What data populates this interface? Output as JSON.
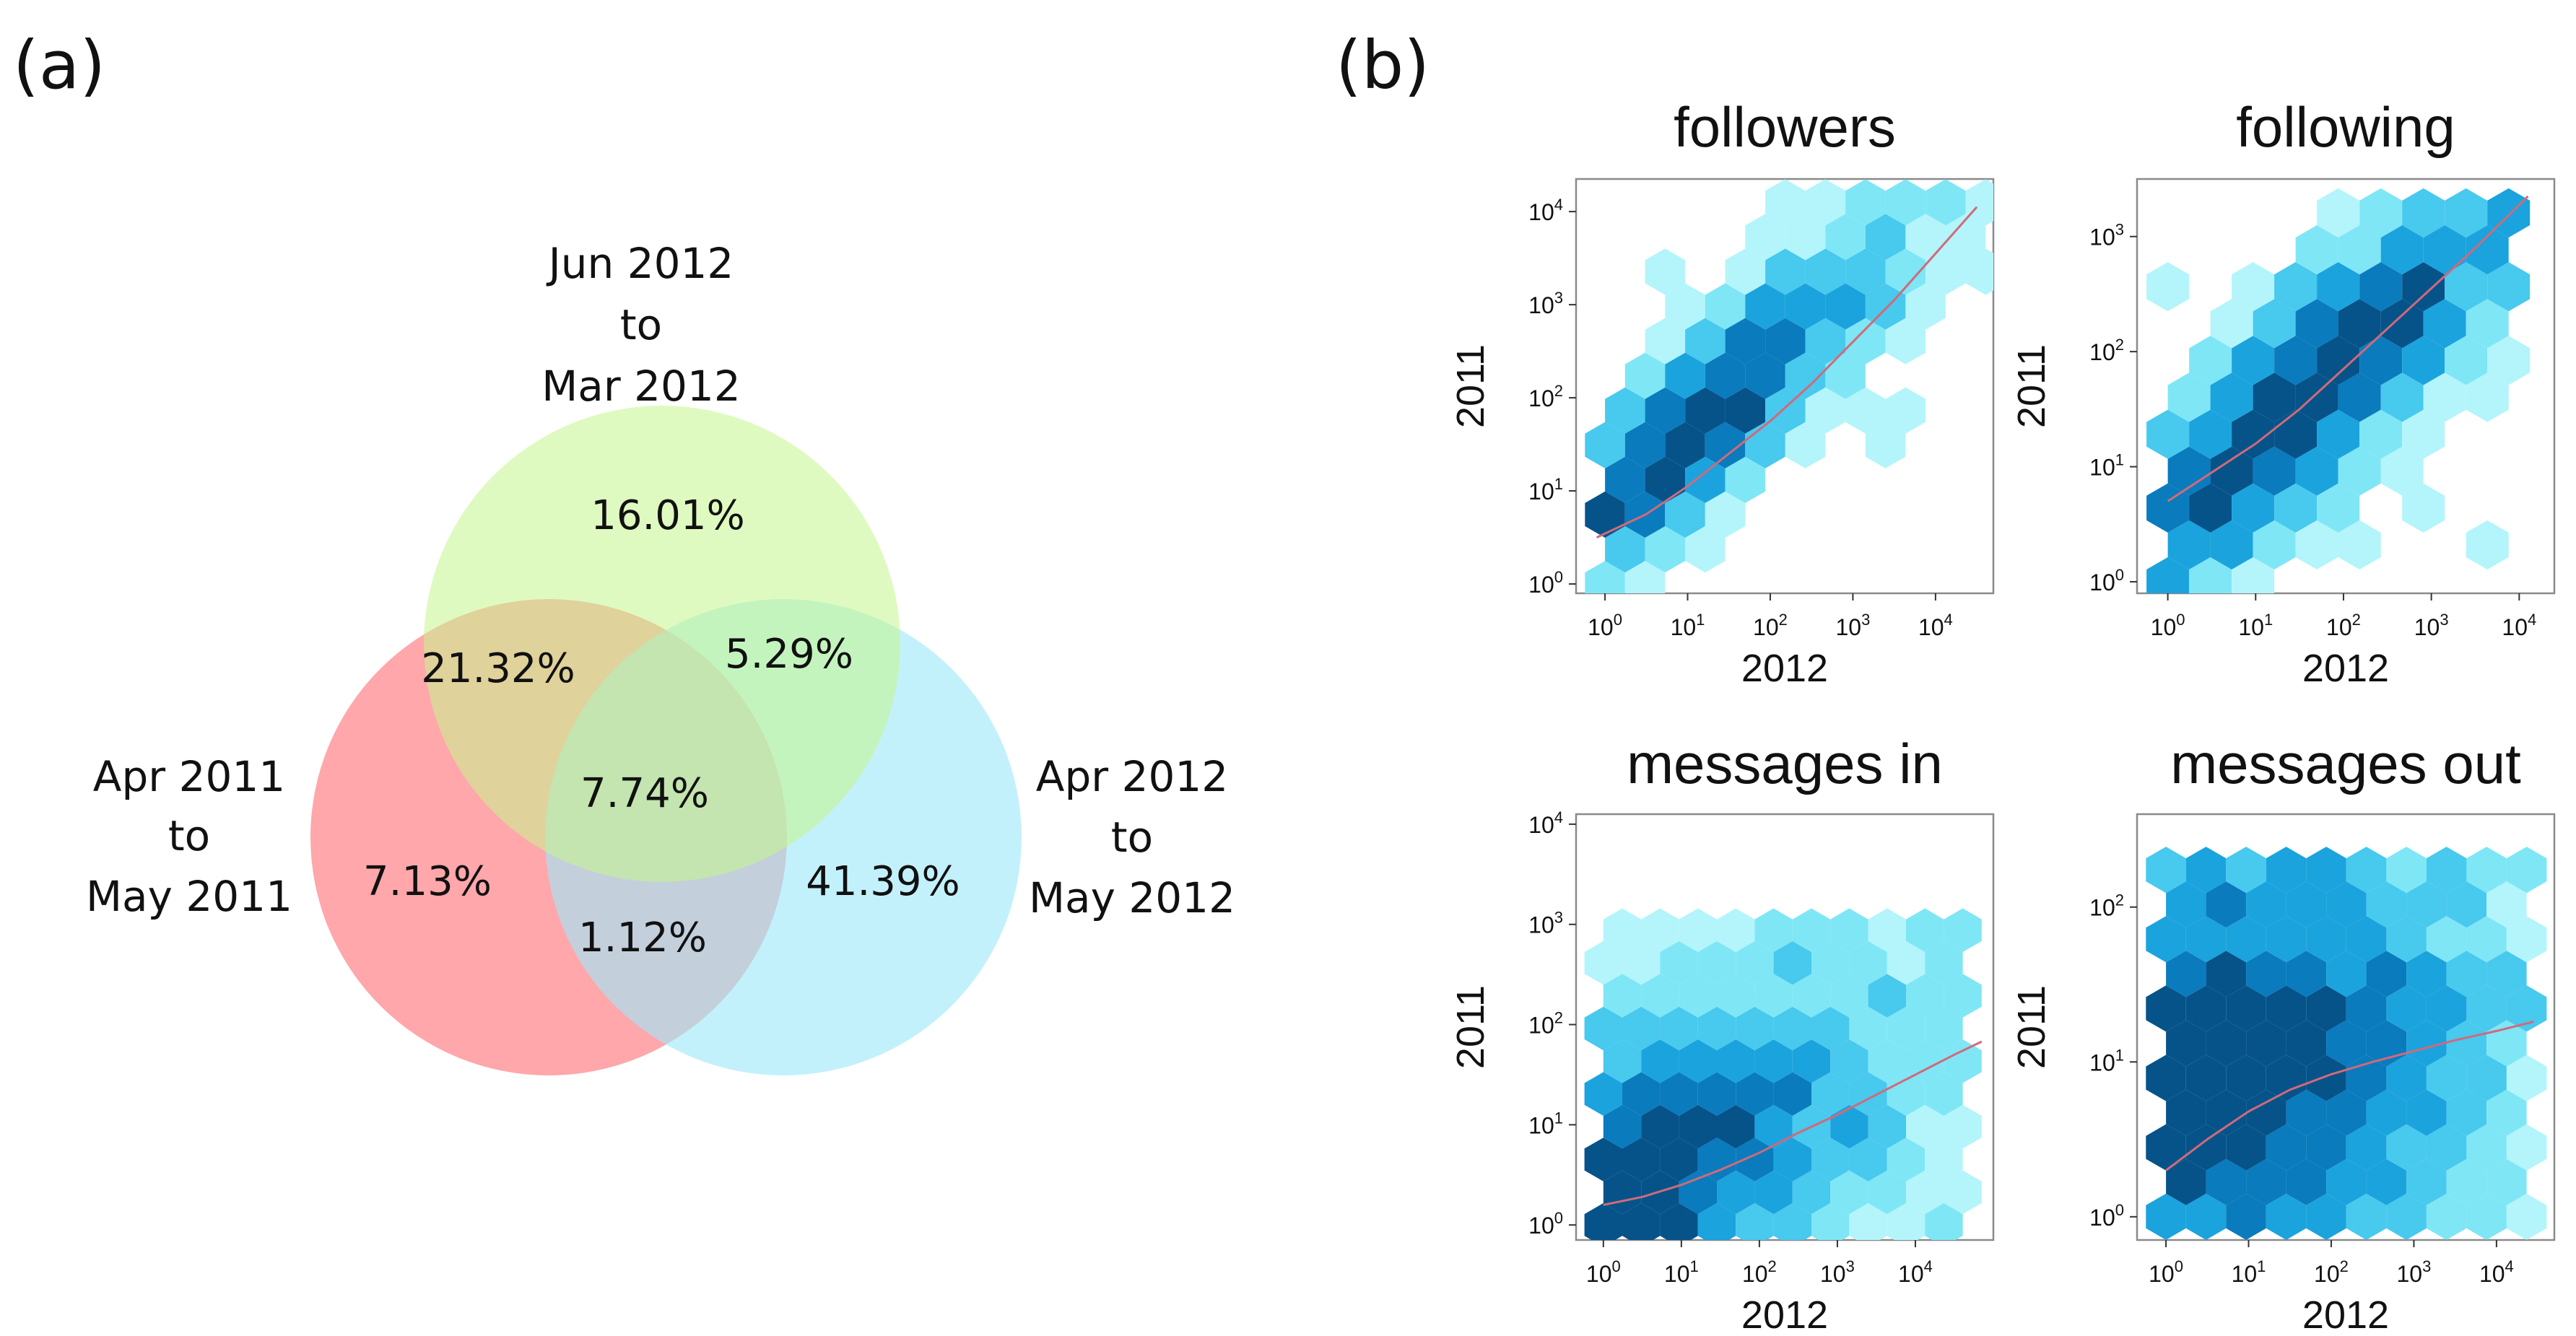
{
  "panels": {
    "a": "(a)",
    "b": "(b)"
  },
  "venn": {
    "sets": [
      {
        "id": "top",
        "label_lines": [
          "Jun 2012",
          "to",
          "Mar 2012"
        ],
        "color": "#c4f58c"
      },
      {
        "id": "left",
        "label_lines": [
          "Apr 2011",
          "to",
          "May 2011"
        ],
        "color": "#ff8e93"
      },
      {
        "id": "right",
        "label_lines": [
          "Apr 2012",
          "to",
          "May 2012"
        ],
        "color": "#9ee8f8"
      }
    ],
    "regions": {
      "top_only": "16.01%",
      "top_left": "21.32%",
      "top_right": "5.29%",
      "center": "7.74%",
      "left_only": "7.13%",
      "right_only": "41.39%",
      "left_right": "1.12%"
    }
  },
  "chart_data": [
    {
      "type": "hexbin",
      "title": "followers",
      "xlabel": "2012",
      "ylabel": "2011",
      "xscale": "log",
      "yscale": "log",
      "xlim": [
        -0.35,
        4.7
      ],
      "ylim": [
        -0.1,
        4.35
      ],
      "xticks": [
        0,
        1,
        2,
        3,
        4
      ],
      "yticks": [
        0,
        1,
        2,
        3,
        4
      ],
      "tick_labels": {
        "base": "10",
        "exps": [
          "0",
          "1",
          "2",
          "3",
          "4"
        ]
      },
      "fit_line": {
        "x": [
          -0.1,
          0.5,
          1,
          1.5,
          2,
          2.5,
          3,
          3.5,
          4,
          4.5
        ],
        "y": [
          0.5,
          0.75,
          1.05,
          1.4,
          1.75,
          2.15,
          2.6,
          3.05,
          3.55,
          4.05
        ],
        "color": "#d06a7a"
      },
      "cloud": {
        "a": 0.88,
        "b": 0.72,
        "spread": 0.55,
        "xrange": [
          0,
          4.6
        ],
        "yrange": [
          0,
          4.3
        ],
        "offset": 0,
        "peak": [
          1.2,
          1.0
        ]
      },
      "colors": [
        "#b3f5fb",
        "#7fe6f6",
        "#48c9ee",
        "#1ba3dd",
        "#0a7bbd",
        "#06538a"
      ]
    },
    {
      "type": "hexbin",
      "title": "following",
      "xlabel": "2012",
      "ylabel": "2011",
      "xscale": "log",
      "yscale": "log",
      "xlim": [
        -0.35,
        4.4
      ],
      "ylim": [
        -0.1,
        3.5
      ],
      "xticks": [
        0,
        1,
        2,
        3,
        4
      ],
      "yticks": [
        0,
        1,
        2,
        3
      ],
      "tick_labels": {
        "base": "10",
        "exps": [
          "0",
          "1",
          "2",
          "3",
          "4"
        ]
      },
      "fit_line": {
        "x": [
          0,
          0.5,
          1,
          1.5,
          2,
          2.5,
          3,
          3.5,
          4.1
        ],
        "y": [
          0.7,
          0.95,
          1.2,
          1.5,
          1.85,
          2.2,
          2.55,
          2.9,
          3.35
        ],
        "color": "#d06a7a"
      },
      "cloud": {
        "a": 0.73,
        "b": 0.45,
        "spread": 0.55,
        "xrange": [
          0,
          4.1
        ],
        "yrange": [
          0,
          3.4
        ],
        "offset": 0,
        "peak": [
          1.6,
          1.6
        ]
      },
      "colors": [
        "#b3f5fb",
        "#7fe6f6",
        "#48c9ee",
        "#1ba3dd",
        "#0a7bbd",
        "#06538a"
      ]
    },
    {
      "type": "hexbin",
      "title": "messages in",
      "xlabel": "2012",
      "ylabel": "2011",
      "xscale": "log",
      "yscale": "log",
      "xlim": [
        -0.35,
        5.0
      ],
      "ylim": [
        -0.15,
        4.1
      ],
      "xticks": [
        0,
        1,
        2,
        3,
        4
      ],
      "yticks": [
        0,
        1,
        2,
        3,
        4
      ],
      "tick_labels": {
        "base": "10",
        "exps": [
          "0",
          "1",
          "2",
          "3",
          "4"
        ]
      },
      "fit_line": {
        "x": [
          0,
          0.5,
          1,
          1.5,
          2,
          2.5,
          3,
          3.5,
          4,
          4.5,
          4.85
        ],
        "y": [
          0.2,
          0.28,
          0.4,
          0.55,
          0.72,
          0.92,
          1.1,
          1.3,
          1.5,
          1.7,
          1.83
        ],
        "color": "#d06a7a"
      },
      "cloud": {
        "a": 0.35,
        "b": 0.4,
        "spread": 1.0,
        "xrange": [
          0,
          4.6
        ],
        "yrange": [
          0,
          3.0
        ],
        "offset": 0,
        "peak": [
          0.4,
          0.4
        ]
      },
      "colors": [
        "#b3f5fb",
        "#7fe6f6",
        "#48c9ee",
        "#1ba3dd",
        "#0a7bbd",
        "#06538a"
      ]
    },
    {
      "type": "hexbin",
      "title": "messages out",
      "xlabel": "2012",
      "ylabel": "2011",
      "xscale": "log",
      "yscale": "log",
      "xlim": [
        -0.35,
        4.7
      ],
      "ylim": [
        -0.15,
        2.6
      ],
      "xticks": [
        0,
        1,
        2,
        3,
        4
      ],
      "yticks": [
        0,
        1,
        2
      ],
      "tick_labels": {
        "base": "10",
        "exps": [
          "0",
          "1",
          "2",
          "3",
          "4"
        ]
      },
      "fit_line": {
        "x": [
          0,
          0.5,
          1,
          1.5,
          2,
          2.5,
          3,
          3.5,
          4,
          4.45
        ],
        "y": [
          0.3,
          0.5,
          0.68,
          0.82,
          0.92,
          1.0,
          1.07,
          1.14,
          1.2,
          1.26
        ],
        "color": "#d06a7a"
      },
      "cloud": {
        "a": 0.15,
        "b": 0.8,
        "spread": 1.2,
        "xrange": [
          0,
          4.4
        ],
        "yrange": [
          0,
          2.3
        ],
        "offset": 0,
        "peak": [
          0.5,
          0.9
        ]
      },
      "colors": [
        "#b3f5fb",
        "#7fe6f6",
        "#48c9ee",
        "#1ba3dd",
        "#0a7bbd",
        "#06538a"
      ]
    }
  ]
}
